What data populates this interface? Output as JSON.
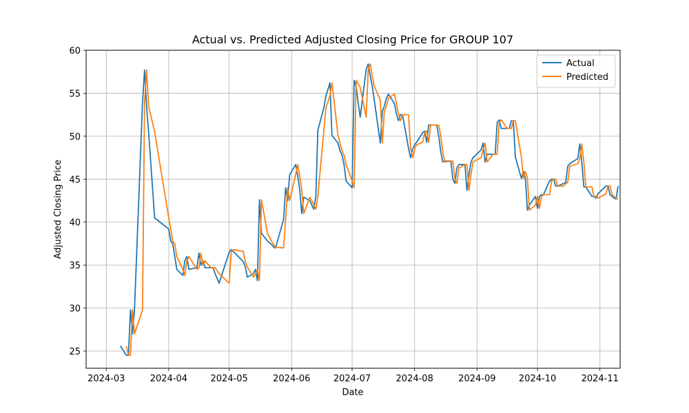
{
  "chart_data": {
    "type": "line",
    "title": "Actual vs. Predicted Adjusted Closing Price for GROUP 107",
    "xlabel": "Date",
    "ylabel": "Adjusted Closing Price",
    "x_ticks": [
      "2024-03",
      "2024-04",
      "2024-05",
      "2024-06",
      "2024-07",
      "2024-08",
      "2024-09",
      "2024-10",
      "2024-11"
    ],
    "y_ticks": [
      25,
      30,
      35,
      40,
      45,
      50,
      55,
      60
    ],
    "xlim": [
      "2024-02-20",
      "2024-11-11"
    ],
    "ylim": [
      23,
      60
    ],
    "grid": true,
    "legend_position": "top-right",
    "series": [
      {
        "name": "Actual",
        "color": "#1f77b4",
        "points": [
          [
            "2024-03-08",
            25.6
          ],
          [
            "2024-03-11",
            24.5
          ],
          [
            "2024-03-12",
            24.5
          ],
          [
            "2024-03-13",
            29.8
          ],
          [
            "2024-03-14",
            27.0
          ],
          [
            "2024-03-15",
            29.8
          ],
          [
            "2024-03-19",
            54.0
          ],
          [
            "2024-03-20",
            57.7
          ],
          [
            "2024-03-21",
            53.5
          ],
          [
            "2024-03-22",
            50.5
          ],
          [
            "2024-03-25",
            40.5
          ],
          [
            "2024-04-01",
            39.2
          ],
          [
            "2024-04-02",
            37.8
          ],
          [
            "2024-04-03",
            37.5
          ],
          [
            "2024-04-04",
            36.0
          ],
          [
            "2024-04-05",
            34.5
          ],
          [
            "2024-04-08",
            33.8
          ],
          [
            "2024-04-09",
            35.5
          ],
          [
            "2024-04-10",
            36.0
          ],
          [
            "2024-04-11",
            34.5
          ],
          [
            "2024-04-15",
            34.7
          ],
          [
            "2024-04-16",
            36.4
          ],
          [
            "2024-04-17",
            35.0
          ],
          [
            "2024-04-18",
            35.5
          ],
          [
            "2024-04-19",
            34.7
          ],
          [
            "2024-04-22",
            34.7
          ],
          [
            "2024-04-23",
            34.7
          ],
          [
            "2024-04-24",
            34.0
          ],
          [
            "2024-04-26",
            32.9
          ],
          [
            "2024-05-01",
            36.5
          ],
          [
            "2024-05-02",
            36.8
          ],
          [
            "2024-05-03",
            36.6
          ],
          [
            "2024-05-08",
            35.4
          ],
          [
            "2024-05-09",
            34.8
          ],
          [
            "2024-05-10",
            33.6
          ],
          [
            "2024-05-13",
            34.0
          ],
          [
            "2024-05-14",
            34.5
          ],
          [
            "2024-05-15",
            33.2
          ],
          [
            "2024-05-16",
            42.6
          ],
          [
            "2024-05-17",
            38.7
          ],
          [
            "2024-05-20",
            37.8
          ],
          [
            "2024-05-22",
            37.4
          ],
          [
            "2024-05-23",
            37.1
          ],
          [
            "2024-05-24",
            37.0
          ],
          [
            "2024-05-28",
            40.3
          ],
          [
            "2024-05-29",
            44.0
          ],
          [
            "2024-05-30",
            42.5
          ],
          [
            "2024-05-31",
            45.5
          ],
          [
            "2024-06-03",
            46.7
          ],
          [
            "2024-06-04",
            45.4
          ],
          [
            "2024-06-05",
            43.8
          ],
          [
            "2024-06-06",
            41.0
          ],
          [
            "2024-06-07",
            42.9
          ],
          [
            "2024-06-10",
            42.5
          ],
          [
            "2024-06-11",
            42.0
          ],
          [
            "2024-06-12",
            41.5
          ],
          [
            "2024-06-13",
            43.0
          ],
          [
            "2024-06-14",
            50.7
          ],
          [
            "2024-06-17",
            53.3
          ],
          [
            "2024-06-18",
            54.7
          ],
          [
            "2024-06-20",
            56.2
          ],
          [
            "2024-06-21",
            50.1
          ],
          [
            "2024-06-24",
            49.2
          ],
          [
            "2024-06-25",
            48.3
          ],
          [
            "2024-06-26",
            47.8
          ],
          [
            "2024-06-27",
            46.7
          ],
          [
            "2024-06-28",
            44.8
          ],
          [
            "2024-07-01",
            44.0
          ],
          [
            "2024-07-02",
            56.5
          ],
          [
            "2024-07-03",
            55.7
          ],
          [
            "2024-07-05",
            52.2
          ],
          [
            "2024-07-08",
            57.8
          ],
          [
            "2024-07-09",
            58.4
          ],
          [
            "2024-07-10",
            57.0
          ],
          [
            "2024-07-11",
            55.8
          ],
          [
            "2024-07-12",
            54.2
          ],
          [
            "2024-07-15",
            49.2
          ],
          [
            "2024-07-16",
            52.9
          ],
          [
            "2024-07-17",
            53.5
          ],
          [
            "2024-07-18",
            54.4
          ],
          [
            "2024-07-19",
            54.9
          ],
          [
            "2024-07-22",
            53.8
          ],
          [
            "2024-07-23",
            52.6
          ],
          [
            "2024-07-24",
            51.8
          ],
          [
            "2024-07-25",
            52.5
          ],
          [
            "2024-07-26",
            52.5
          ],
          [
            "2024-07-29",
            48.6
          ],
          [
            "2024-07-30",
            47.5
          ],
          [
            "2024-07-31",
            48.5
          ],
          [
            "2024-08-01",
            49.0
          ],
          [
            "2024-08-02",
            49.3
          ],
          [
            "2024-08-05",
            50.4
          ],
          [
            "2024-08-06",
            50.6
          ],
          [
            "2024-08-07",
            49.3
          ],
          [
            "2024-08-08",
            51.3
          ],
          [
            "2024-08-09",
            51.3
          ],
          [
            "2024-08-12",
            51.3
          ],
          [
            "2024-08-13",
            50.0
          ],
          [
            "2024-08-14",
            48.2
          ],
          [
            "2024-08-15",
            47.0
          ],
          [
            "2024-08-16",
            47.1
          ],
          [
            "2024-08-19",
            47.1
          ],
          [
            "2024-08-20",
            45.0
          ],
          [
            "2024-08-21",
            44.5
          ],
          [
            "2024-08-22",
            46.3
          ],
          [
            "2024-08-23",
            46.7
          ],
          [
            "2024-08-26",
            46.7
          ],
          [
            "2024-08-27",
            43.7
          ],
          [
            "2024-08-28",
            45.5
          ],
          [
            "2024-08-29",
            47.0
          ],
          [
            "2024-08-30",
            47.5
          ],
          [
            "2024-09-03",
            48.4
          ],
          [
            "2024-09-04",
            49.2
          ],
          [
            "2024-09-05",
            47.0
          ],
          [
            "2024-09-06",
            47.9
          ],
          [
            "2024-09-09",
            47.9
          ],
          [
            "2024-09-10",
            47.9
          ],
          [
            "2024-09-11",
            51.6
          ],
          [
            "2024-09-12",
            51.9
          ],
          [
            "2024-09-13",
            50.9
          ],
          [
            "2024-09-16",
            50.9
          ],
          [
            "2024-09-17",
            50.9
          ],
          [
            "2024-09-18",
            51.8
          ],
          [
            "2024-09-19",
            51.8
          ],
          [
            "2024-09-20",
            47.6
          ],
          [
            "2024-09-23",
            45.1
          ],
          [
            "2024-09-24",
            45.9
          ],
          [
            "2024-09-25",
            45.1
          ],
          [
            "2024-09-26",
            41.4
          ],
          [
            "2024-09-27",
            42.0
          ],
          [
            "2024-09-30",
            43.0
          ],
          [
            "2024-10-01",
            41.6
          ],
          [
            "2024-10-02",
            43.0
          ],
          [
            "2024-10-03",
            43.2
          ],
          [
            "2024-10-04",
            43.2
          ],
          [
            "2024-10-07",
            44.8
          ],
          [
            "2024-10-08",
            45.0
          ],
          [
            "2024-10-09",
            45.0
          ],
          [
            "2024-10-10",
            44.2
          ],
          [
            "2024-10-11",
            44.2
          ],
          [
            "2024-10-14",
            44.5
          ],
          [
            "2024-10-15",
            44.6
          ],
          [
            "2024-10-16",
            46.5
          ],
          [
            "2024-10-17",
            46.8
          ],
          [
            "2024-10-21",
            47.4
          ],
          [
            "2024-10-22",
            49.1
          ],
          [
            "2024-10-23",
            47.0
          ],
          [
            "2024-10-24",
            44.1
          ],
          [
            "2024-10-25",
            44.1
          ],
          [
            "2024-10-28",
            43.0
          ],
          [
            "2024-10-29",
            43.0
          ],
          [
            "2024-10-30",
            42.8
          ],
          [
            "2024-10-31",
            43.3
          ],
          [
            "2024-11-04",
            44.2
          ],
          [
            "2024-11-05",
            44.2
          ],
          [
            "2024-11-06",
            43.2
          ],
          [
            "2024-11-07",
            43.0
          ],
          [
            "2024-11-08",
            42.8
          ],
          [
            "2024-11-09",
            42.7
          ],
          [
            "2024-11-10",
            44.2
          ],
          [
            "2024-10-29b",
            null
          ]
        ]
      },
      {
        "name": "Predicted",
        "color": "#ff7f0e",
        "points": []
      }
    ]
  }
}
